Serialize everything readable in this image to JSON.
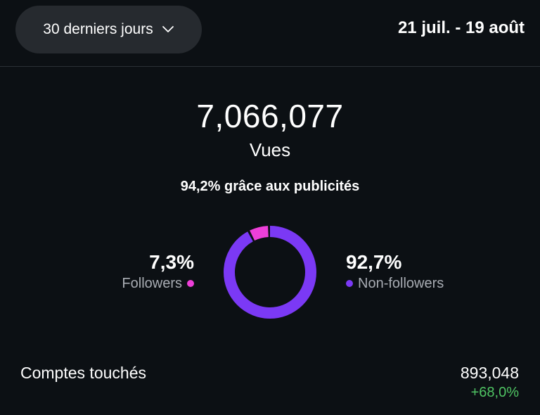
{
  "header": {
    "range_selector_label": "30 derniers jours",
    "date_range": "21 juil. - 19 août"
  },
  "summary": {
    "total": "7,066,077",
    "total_label": "Vues",
    "ads_note": "94,2% grâce aux publicités"
  },
  "breakdown": {
    "followers": {
      "percent_label": "7,3%",
      "label": "Followers",
      "value": 7.3,
      "color": "#ee3fd9"
    },
    "non_followers": {
      "percent_label": "92,7%",
      "label": "Non-followers",
      "value": 92.7,
      "color": "#7b39f5"
    }
  },
  "metrics": {
    "accounts_reached": {
      "label": "Comptes touchés",
      "value": "893,048",
      "change": "+68,0%",
      "change_color": "#4fc463"
    }
  },
  "icons": {
    "range_selector": "chevron-down-icon"
  }
}
